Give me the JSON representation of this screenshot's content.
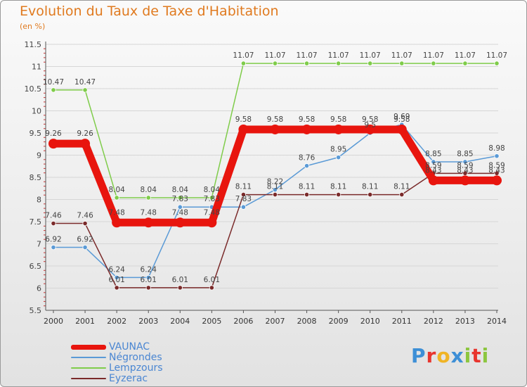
{
  "header": {
    "title": "Evolution du Taux de Taxe d'Habitation",
    "subtitle": "(en %)"
  },
  "branding": {
    "text": "Proxiti",
    "letters": [
      {
        "ch": "P",
        "color": "#3d8fd6"
      },
      {
        "ch": "r",
        "color": "#e8352e"
      },
      {
        "ch": "o",
        "color": "#f0b425"
      },
      {
        "ch": "x",
        "color": "#3d8fd6"
      },
      {
        "ch": "i",
        "color": "#8cc63f"
      },
      {
        "ch": "t",
        "color": "#e8352e"
      },
      {
        "ch": "i",
        "color": "#8cc63f"
      }
    ]
  },
  "chart_data": {
    "type": "line",
    "title": "Evolution du Taux de Taxe d'Habitation",
    "ylabel": "(en %)",
    "xlabel": "",
    "x": [
      "2000",
      "2001",
      "2002",
      "2003",
      "2004",
      "2005",
      "2006",
      "2007",
      "2008",
      "2009",
      "2010",
      "2011",
      "2012",
      "2013",
      "2014"
    ],
    "ylim": [
      5.5,
      11.5
    ],
    "yticks": [
      "5.5",
      "6",
      "6.5",
      "7",
      "7.5",
      "8",
      "8.5",
      "9",
      "9.5",
      "10",
      "10.5",
      "11",
      "11.5"
    ],
    "grid": "horizontal",
    "legend_position": "bottom-left",
    "series": [
      {
        "name": "Lempzours",
        "color": "#7fcc4a",
        "values": [
          10.47,
          10.47,
          8.04,
          8.04,
          8.04,
          8.04,
          11.07,
          11.07,
          11.07,
          11.07,
          11.07,
          11.07,
          11.07,
          11.07,
          11.07
        ],
        "labels": [
          "10.47",
          "10.47",
          "8.04",
          "8.04",
          "8.04",
          "8.04",
          "11.07",
          "11.07",
          "11.07",
          "11.07",
          "11.07",
          "11.07",
          "11.07",
          "11.07",
          "11.07"
        ]
      },
      {
        "name": "Négrondes",
        "color": "#5a9ad6",
        "values": [
          6.92,
          6.92,
          6.24,
          6.24,
          7.83,
          7.83,
          7.83,
          8.22,
          8.76,
          8.95,
          9.5,
          9.69,
          8.85,
          8.85,
          8.98
        ],
        "labels": [
          "6.92",
          "6.92",
          "6.24",
          "6.24",
          "7.83",
          "7.83",
          "7.83",
          "8.22",
          "8.76",
          "8.95",
          "9.5",
          "9.69",
          "8.85",
          "8.85",
          "8.98"
        ]
      },
      {
        "name": "Eyzerac",
        "color": "#7a2a2a",
        "values": [
          7.46,
          7.46,
          6.01,
          6.01,
          6.01,
          6.01,
          8.11,
          8.11,
          8.11,
          8.11,
          8.11,
          8.11,
          8.59,
          8.59,
          8.59
        ],
        "labels": [
          "7.46",
          "7.46",
          "6.01",
          "6.01",
          "6.01",
          "6.01",
          "8.11",
          "8.11",
          "8.11",
          "8.11",
          "8.11",
          "8.11",
          "8.59",
          "8.59",
          "8.59"
        ]
      },
      {
        "name": "VAUNAC",
        "color": "#e8150e",
        "values": [
          9.26,
          9.26,
          7.48,
          7.48,
          7.48,
          7.48,
          9.58,
          9.58,
          9.58,
          9.58,
          9.58,
          9.58,
          8.43,
          8.43,
          8.43
        ],
        "labels": [
          "9.26",
          "9.26",
          "7.48",
          "7.48",
          "7.48",
          "7.48",
          "9.58",
          "9.58",
          "9.58",
          "9.58",
          "9.58",
          "9.58",
          "8.43",
          "8.43",
          "8.43"
        ]
      }
    ]
  },
  "legend": {
    "items": [
      {
        "label": "VAUNAC",
        "color": "#e8150e",
        "thickness": 7
      },
      {
        "label": "Négrondes",
        "color": "#5a9ad6",
        "thickness": 2
      },
      {
        "label": "Lempzours",
        "color": "#7fcc4a",
        "thickness": 2
      },
      {
        "label": "Eyzerac",
        "color": "#7a2a2a",
        "thickness": 2
      }
    ]
  }
}
